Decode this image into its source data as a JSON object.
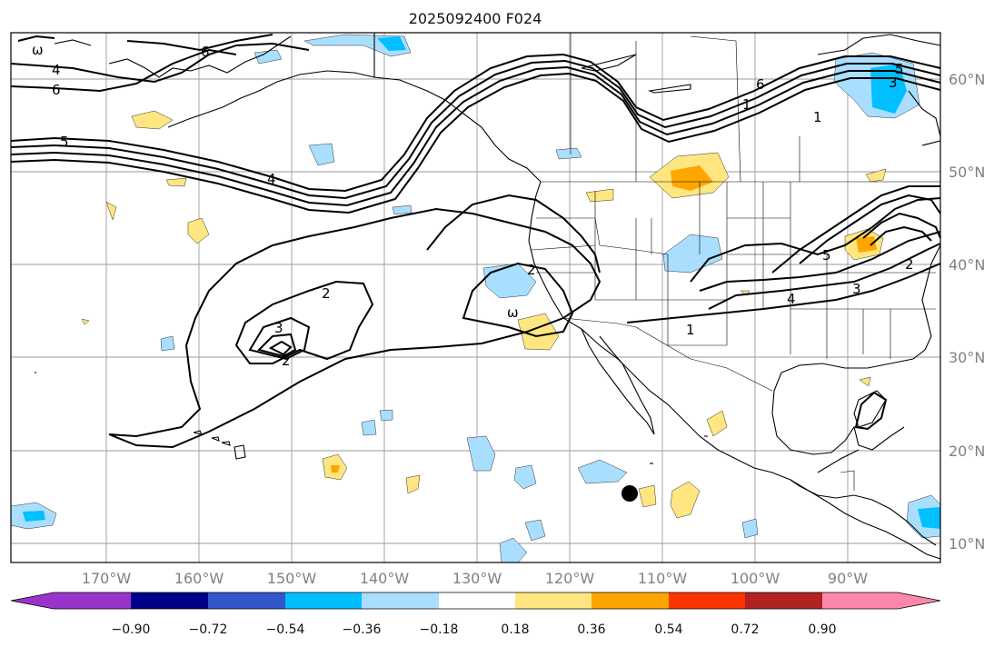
{
  "title": "2025092400 F024",
  "map": {
    "lon_labels": [
      "170°W",
      "160°W",
      "150°W",
      "140°W",
      "130°W",
      "120°W",
      "110°W",
      "100°W",
      "90°W"
    ],
    "lat_labels": [
      "60°N",
      "50°N",
      "40°N",
      "30°N",
      "20°N",
      "10°N"
    ],
    "contour_labels": [
      "ω",
      "4",
      "6",
      "6",
      "5",
      "4",
      "2",
      "3",
      "2",
      "2",
      "ω",
      "1",
      "4",
      "5",
      "3",
      "6",
      "1",
      "2",
      "5",
      "3",
      "1"
    ]
  },
  "colorbar": {
    "ticks": [
      "−0.90",
      "−0.72",
      "−0.54",
      "−0.36",
      "−0.18",
      "0.18",
      "0.36",
      "0.54",
      "0.72",
      "0.90"
    ],
    "colors": [
      "#9933cc",
      "#000088",
      "#3355cc",
      "#00bfff",
      "#aadeff",
      "#ffffff",
      "#ffe680",
      "#ffa500",
      "#ff3300",
      "#b22222",
      "#ff88aa"
    ]
  }
}
